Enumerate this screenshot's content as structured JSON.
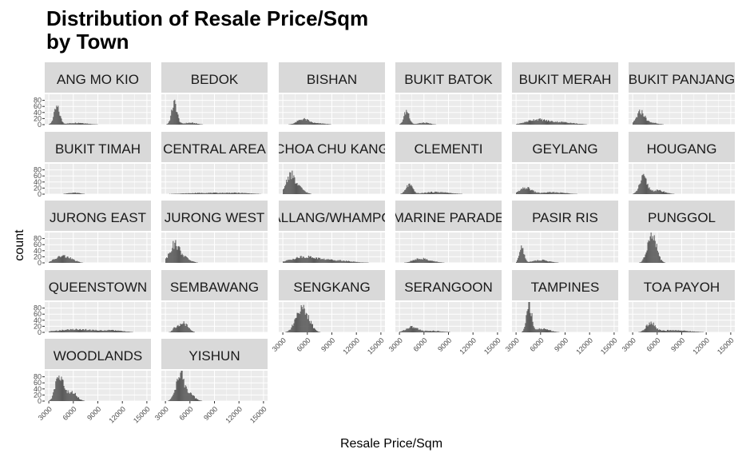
{
  "chart_data": {
    "type": "histogram-facets",
    "title_lines": [
      "Distribution of Resale Price/Sqm",
      "by Town"
    ],
    "xlabel": "Resale Price/Sqm",
    "ylabel": "count",
    "xlim": [
      2500,
      15500
    ],
    "ylim": [
      0,
      100
    ],
    "x_ticks": [
      3000,
      6000,
      9000,
      12000,
      15000
    ],
    "x_tick_labels": [
      "3000",
      "6000",
      "9000",
      "12000",
      "15000"
    ],
    "y_ticks": [
      0,
      20,
      40,
      60,
      80
    ],
    "y_tick_labels": [
      "0",
      "20",
      "40",
      "60",
      "80"
    ],
    "bin_width": 100,
    "facets": [
      {
        "town": "ANG MO KIO",
        "peak": 4000,
        "height": 55,
        "spread": 350,
        "tail_mean": 6500,
        "tail_height": 6,
        "tail_spread": 1200
      },
      {
        "town": "BEDOK",
        "peak": 4100,
        "height": 70,
        "spread": 330,
        "tail_mean": 6000,
        "tail_height": 6,
        "tail_spread": 800
      },
      {
        "town": "BISHAN",
        "peak": 5500,
        "height": 18,
        "spread": 700,
        "tail_mean": 7500,
        "tail_height": 4,
        "tail_spread": 800
      },
      {
        "town": "BUKIT BATOK",
        "peak": 3900,
        "height": 45,
        "spread": 330,
        "tail_mean": 6000,
        "tail_height": 6,
        "tail_spread": 700
      },
      {
        "town": "BUKIT MERAH",
        "peak": 5500,
        "height": 16,
        "spread": 1200,
        "tail_mean": 8500,
        "tail_height": 8,
        "tail_spread": 1500
      },
      {
        "town": "BUKIT PANJANG",
        "peak": 4000,
        "height": 42,
        "spread": 500,
        "tail_mean": 5500,
        "tail_height": 6,
        "tail_spread": 600
      },
      {
        "town": "BUKIT TIMAH",
        "peak": 6000,
        "height": 4,
        "spread": 700,
        "tail_mean": 6500,
        "tail_height": 1,
        "tail_spread": 500
      },
      {
        "town": "CENTRAL AREA",
        "peak": 8000,
        "height": 4,
        "spread": 2500,
        "tail_mean": 12000,
        "tail_height": 3,
        "tail_spread": 1500
      },
      {
        "town": "CHOA CHU KANG",
        "peak": 3900,
        "height": 62,
        "spread": 500,
        "tail_mean": 5000,
        "tail_height": 20,
        "tail_spread": 600
      },
      {
        "town": "CLEMENTI",
        "peak": 4200,
        "height": 30,
        "spread": 400,
        "tail_mean": 7500,
        "tail_height": 7,
        "tail_spread": 1500
      },
      {
        "town": "GEYLANG",
        "peak": 4200,
        "height": 20,
        "spread": 700,
        "tail_mean": 7500,
        "tail_height": 6,
        "tail_spread": 1500
      },
      {
        "town": "HOUGANG",
        "peak": 4300,
        "height": 52,
        "spread": 450,
        "tail_mean": 6000,
        "tail_height": 12,
        "tail_spread": 900
      },
      {
        "town": "JURONG EAST",
        "peak": 4700,
        "height": 22,
        "spread": 900,
        "tail_mean": 6000,
        "tail_height": 3,
        "tail_spread": 500
      },
      {
        "town": "JURONG WEST",
        "peak": 4100,
        "height": 58,
        "spread": 600,
        "tail_mean": 5300,
        "tail_height": 15,
        "tail_spread": 700
      },
      {
        "town": "KALLANG/WHAMPOA",
        "peak": 5500,
        "height": 18,
        "spread": 1500,
        "tail_mean": 9000,
        "tail_height": 9,
        "tail_spread": 2000
      },
      {
        "town": "MARINE PARADE",
        "peak": 5500,
        "height": 14,
        "spread": 800,
        "tail_mean": 7000,
        "tail_height": 4,
        "tail_spread": 800
      },
      {
        "town": "PASIR RIS",
        "peak": 3700,
        "height": 52,
        "spread": 280,
        "tail_mean": 6000,
        "tail_height": 9,
        "tail_spread": 1000
      },
      {
        "town": "PUNGGOL",
        "peak": 5500,
        "height": 75,
        "spread": 500,
        "tail_mean": 4900,
        "tail_height": 25,
        "tail_spread": 400
      },
      {
        "town": "QUEENSTOWN",
        "peak": 6500,
        "height": 10,
        "spread": 2300,
        "tail_mean": 11000,
        "tail_height": 5,
        "tail_spread": 1200
      },
      {
        "town": "SEMBAWANG",
        "peak": 5200,
        "height": 30,
        "spread": 550,
        "tail_mean": 4200,
        "tail_height": 12,
        "tail_spread": 300
      },
      {
        "town": "SENGKANG",
        "peak": 5200,
        "height": 78,
        "spread": 650,
        "tail_mean": 6300,
        "tail_height": 20,
        "tail_spread": 500
      },
      {
        "town": "SERANGOON",
        "peak": 4500,
        "height": 17,
        "spread": 700,
        "tail_mean": 7000,
        "tail_height": 5,
        "tail_spread": 1200
      },
      {
        "town": "TAMPINES",
        "peak": 4600,
        "height": 92,
        "spread": 300,
        "tail_mean": 6200,
        "tail_height": 12,
        "tail_spread": 900
      },
      {
        "town": "TOA PAYOH",
        "peak": 5200,
        "height": 32,
        "spread": 500,
        "tail_mean": 8000,
        "tail_height": 7,
        "tail_spread": 1800
      },
      {
        "town": "WOODLANDS",
        "peak": 4300,
        "height": 92,
        "spread": 450,
        "tail_mean": 5800,
        "tail_height": 30,
        "tail_spread": 600
      },
      {
        "town": "YISHUN",
        "peak": 4800,
        "height": 88,
        "spread": 500,
        "tail_mean": 6000,
        "tail_height": 20,
        "tail_spread": 600
      }
    ]
  },
  "colors": {
    "panel_bg": "#ebebeb",
    "strip_bg": "#d9d9d9",
    "grid_major": "#ffffff",
    "bar_fill": "#595959",
    "axis_text": "#4d4d4d"
  }
}
